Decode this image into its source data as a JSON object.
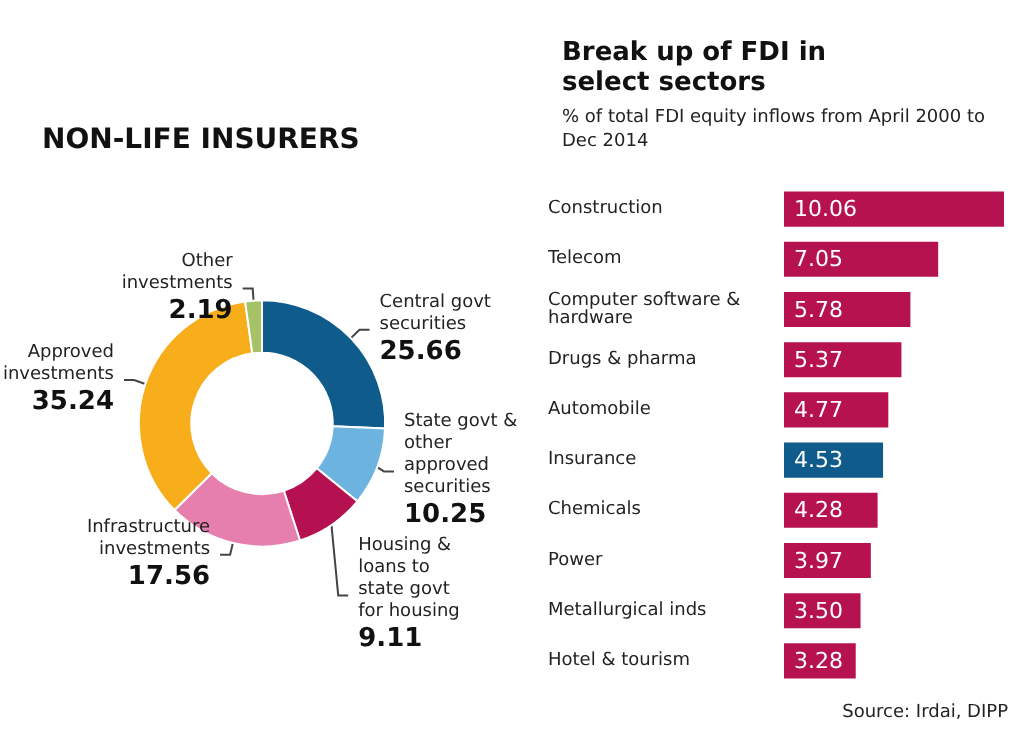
{
  "chart_data": [
    {
      "type": "donut",
      "title": "NON-LIFE INSURERS",
      "categories": [
        "Central govt securities",
        "State govt & other approved securities",
        "Housing & loans to state govt for housing",
        "Infrastructure investments",
        "Approved investments",
        "Other investments"
      ],
      "values": [
        25.66,
        10.25,
        9.11,
        17.56,
        35.24,
        2.19
      ],
      "colors": [
        "#0f5c8c",
        "#6db3df",
        "#b5104f",
        "#e77fae",
        "#f7ae1a",
        "#a5c264"
      ],
      "data_labels": true
    },
    {
      "type": "bar",
      "orientation": "horizontal",
      "title": "Break up of FDI in select sectors",
      "subtitle": "% of total FDI equity inflows from April 2000 to Dec 2014",
      "categories": [
        "Construction",
        "Telecom",
        "Computer software & hardware",
        "Drugs & pharma",
        "Automobile",
        "Insurance",
        "Chemicals",
        "Power",
        "Metallurgical inds",
        "Hotel & tourism"
      ],
      "values": [
        10.06,
        7.05,
        5.78,
        5.37,
        4.77,
        4.53,
        4.28,
        3.97,
        3.5,
        3.28
      ],
      "colors": [
        "#b5124f",
        "#b5124f",
        "#b5124f",
        "#b5124f",
        "#b5124f",
        "#0f5c8c",
        "#b5124f",
        "#b5124f",
        "#b5124f",
        "#b5124f"
      ],
      "value_labels": [
        "10.06",
        "7.05",
        "5.78",
        "5.37",
        "4.77",
        "4.53",
        "4.28",
        "3.97",
        "3.50",
        "3.28"
      ],
      "annotations": [
        "Source: Irdai, DIPP"
      ]
    }
  ]
}
